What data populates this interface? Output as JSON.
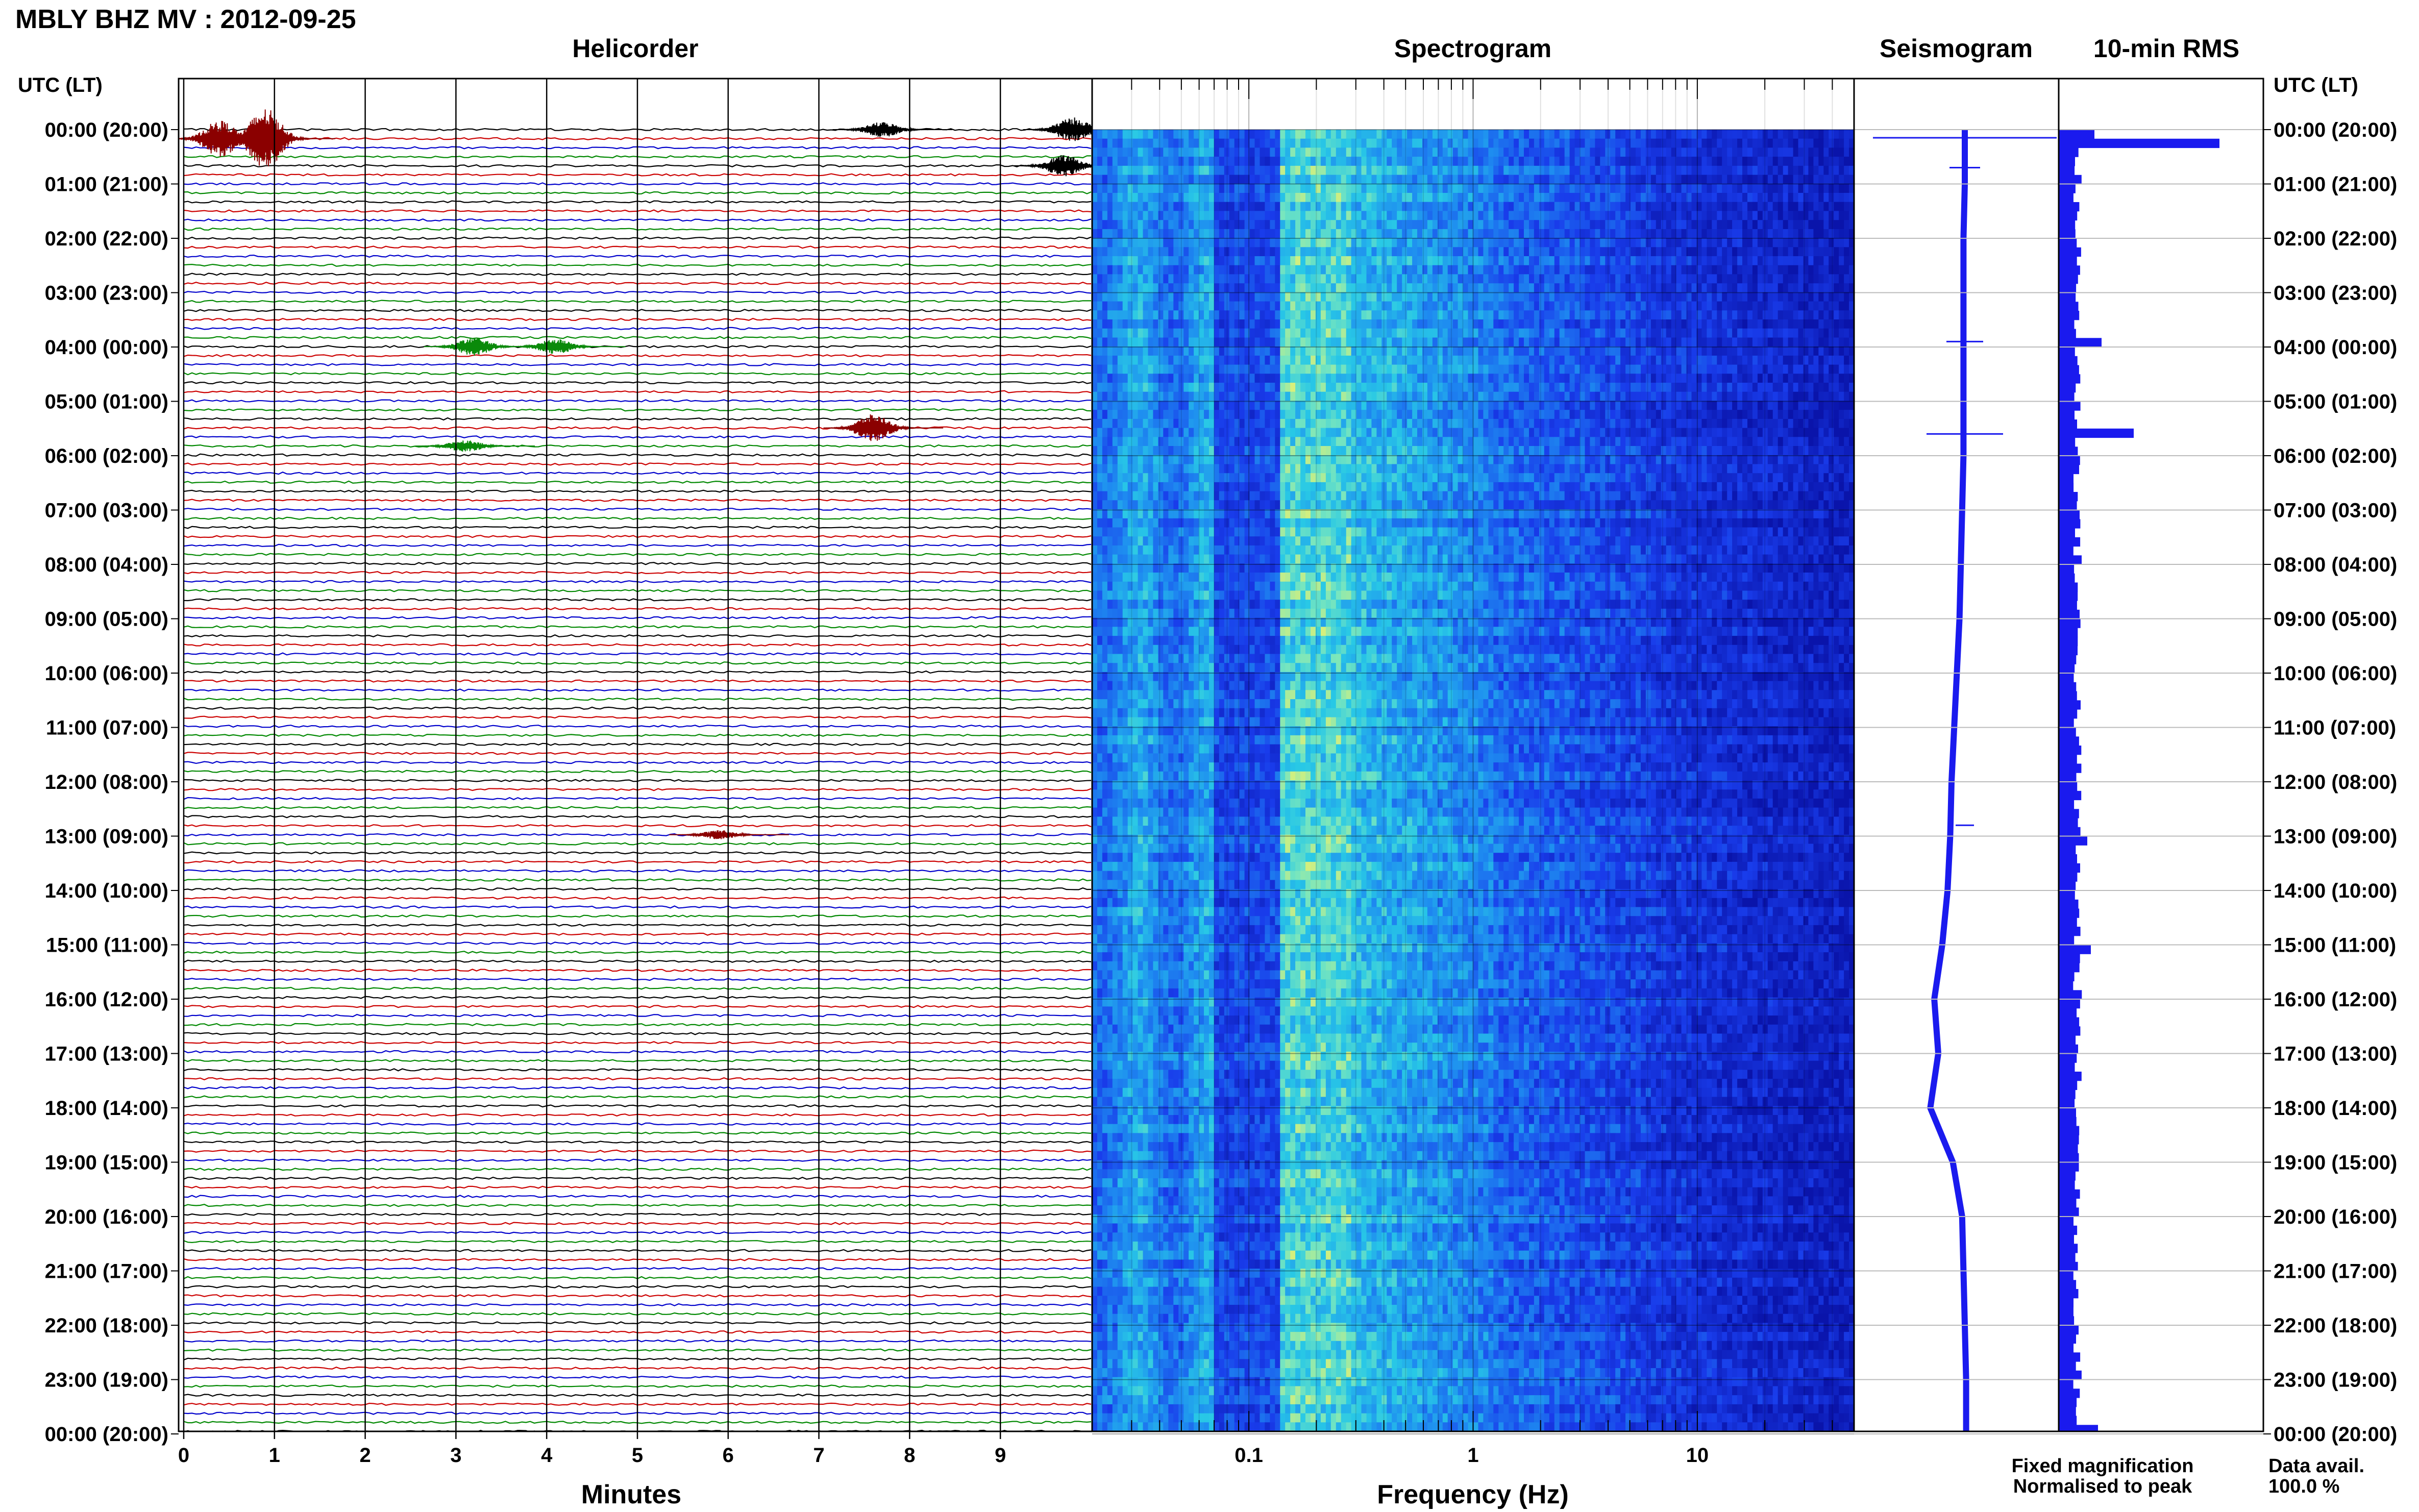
{
  "title": "MBLY BHZ MV : 2012-09-25",
  "panels": {
    "helicorder": "Helicorder",
    "spectrogram": "Spectrogram",
    "seismogram": "Seismogram",
    "rms": "10-min RMS"
  },
  "time_axis": {
    "header": "UTC (LT)",
    "labels": [
      "00:00 (20:00)",
      "01:00 (21:00)",
      "02:00 (22:00)",
      "03:00 (23:00)",
      "04:00 (00:00)",
      "05:00 (01:00)",
      "06:00 (02:00)",
      "07:00 (03:00)",
      "08:00 (04:00)",
      "09:00 (05:00)",
      "10:00 (06:00)",
      "11:00 (07:00)",
      "12:00 (08:00)",
      "13:00 (09:00)",
      "14:00 (10:00)",
      "15:00 (11:00)",
      "16:00 (12:00)",
      "17:00 (13:00)",
      "18:00 (14:00)",
      "19:00 (15:00)",
      "20:00 (16:00)",
      "21:00 (17:00)",
      "22:00 (18:00)",
      "23:00 (19:00)",
      "00:00 (20:00)"
    ]
  },
  "helicorder_axis": {
    "title": "Minutes",
    "ticks": [
      "0",
      "1",
      "2",
      "3",
      "4",
      "5",
      "6",
      "7",
      "8",
      "9"
    ],
    "min": 0,
    "max": 10
  },
  "spectrogram_axis": {
    "title": "Frequency (Hz)",
    "ticks": [
      {
        "v": 0.1,
        "label": "0.1"
      },
      {
        "v": 1,
        "label": "1"
      },
      {
        "v": 10,
        "label": "10"
      }
    ],
    "min": 0.02,
    "max": 50,
    "scale": "log"
  },
  "legend": {
    "fixed": "Fixed magnification",
    "normalised": "Normalised to peak",
    "avail_label": "Data avail.",
    "avail_value": "100.0 %",
    "fixed_color": "#1010ee",
    "normalised_color": "#ee1010"
  },
  "colors": {
    "trace_cycle": [
      "#000000",
      "#cc0000",
      "#0000cc",
      "#008800"
    ],
    "event_red": "#8b0000",
    "event_green": "#0a8a0a",
    "rms_fill": "#1a1aee",
    "seis_line": "#1a1aee"
  },
  "chart_data": [
    {
      "type": "line",
      "title": "Helicorder",
      "xlabel": "Minutes",
      "x_range": [
        0,
        10
      ],
      "rows": 145,
      "row_minutes": 10,
      "events": [
        {
          "hour": 0.1,
          "minute": 0.9,
          "amp": 1.0,
          "color": "event_red"
        },
        {
          "hour": 0.1,
          "minute": 0.4,
          "amp": 0.6,
          "color": "event_red"
        },
        {
          "hour": 0.0,
          "minute": 7.7,
          "amp": 0.25,
          "color": "trace"
        },
        {
          "hour": 0.0,
          "minute": 9.8,
          "amp": 0.4,
          "color": "trace"
        },
        {
          "hour": 0.65,
          "minute": 9.7,
          "amp": 0.35,
          "color": "trace"
        },
        {
          "hour": 4.0,
          "minute": 3.2,
          "amp": 0.3,
          "color": "event_green"
        },
        {
          "hour": 4.0,
          "minute": 4.1,
          "amp": 0.25,
          "color": "event_green"
        },
        {
          "hour": 5.5,
          "minute": 7.6,
          "amp": 0.45,
          "color": "event_red"
        },
        {
          "hour": 5.85,
          "minute": 3.1,
          "amp": 0.2,
          "color": "event_green"
        },
        {
          "hour": 13.0,
          "minute": 5.9,
          "amp": 0.15,
          "color": "event_red"
        }
      ]
    },
    {
      "type": "heatmap",
      "title": "Spectrogram",
      "xlabel": "Frequency (Hz)",
      "x_range": [
        0.02,
        50
      ],
      "x_scale": "log",
      "y_range_hours": [
        0,
        24
      ]
    },
    {
      "type": "line",
      "title": "Seismogram",
      "hours": [
        0,
        1,
        2,
        3,
        4,
        5,
        6,
        7,
        8,
        9,
        10,
        11,
        12,
        13,
        14,
        15,
        16,
        17,
        18,
        19,
        20,
        21,
        22,
        23,
        24
      ],
      "offset": [
        0,
        0,
        -0.1,
        -0.1,
        -0.1,
        -0.1,
        -0.1,
        -0.2,
        -0.3,
        -0.4,
        -0.6,
        -0.8,
        -1.0,
        -1.1,
        -1.3,
        -1.7,
        -2.3,
        -2.0,
        -2.6,
        -0.9,
        -0.2,
        -0.1,
        0,
        0.1,
        0.1
      ],
      "spikes": [
        {
          "hour": 0.15,
          "amp": 6.0
        },
        {
          "hour": 0.7,
          "amp": 1.0
        },
        {
          "hour": 3.9,
          "amp": 1.2
        },
        {
          "hour": 5.6,
          "amp": 2.5
        },
        {
          "hour": 12.8,
          "amp": 0.6
        }
      ]
    },
    {
      "type": "bar",
      "title": "10-min RMS",
      "orientation": "horizontal",
      "bin_minutes": 10,
      "peaks": [
        {
          "hour": 0.0,
          "value": 1.0
        },
        {
          "hour": 0.17,
          "value": 4.5
        },
        {
          "hour": 3.83,
          "value": 1.2
        },
        {
          "hour": 5.5,
          "value": 2.1
        },
        {
          "hour": 13.0,
          "value": 0.8
        },
        {
          "hour": 15.0,
          "value": 0.9
        },
        {
          "hour": 23.85,
          "value": 1.1
        }
      ],
      "baseline": 0.4
    }
  ]
}
